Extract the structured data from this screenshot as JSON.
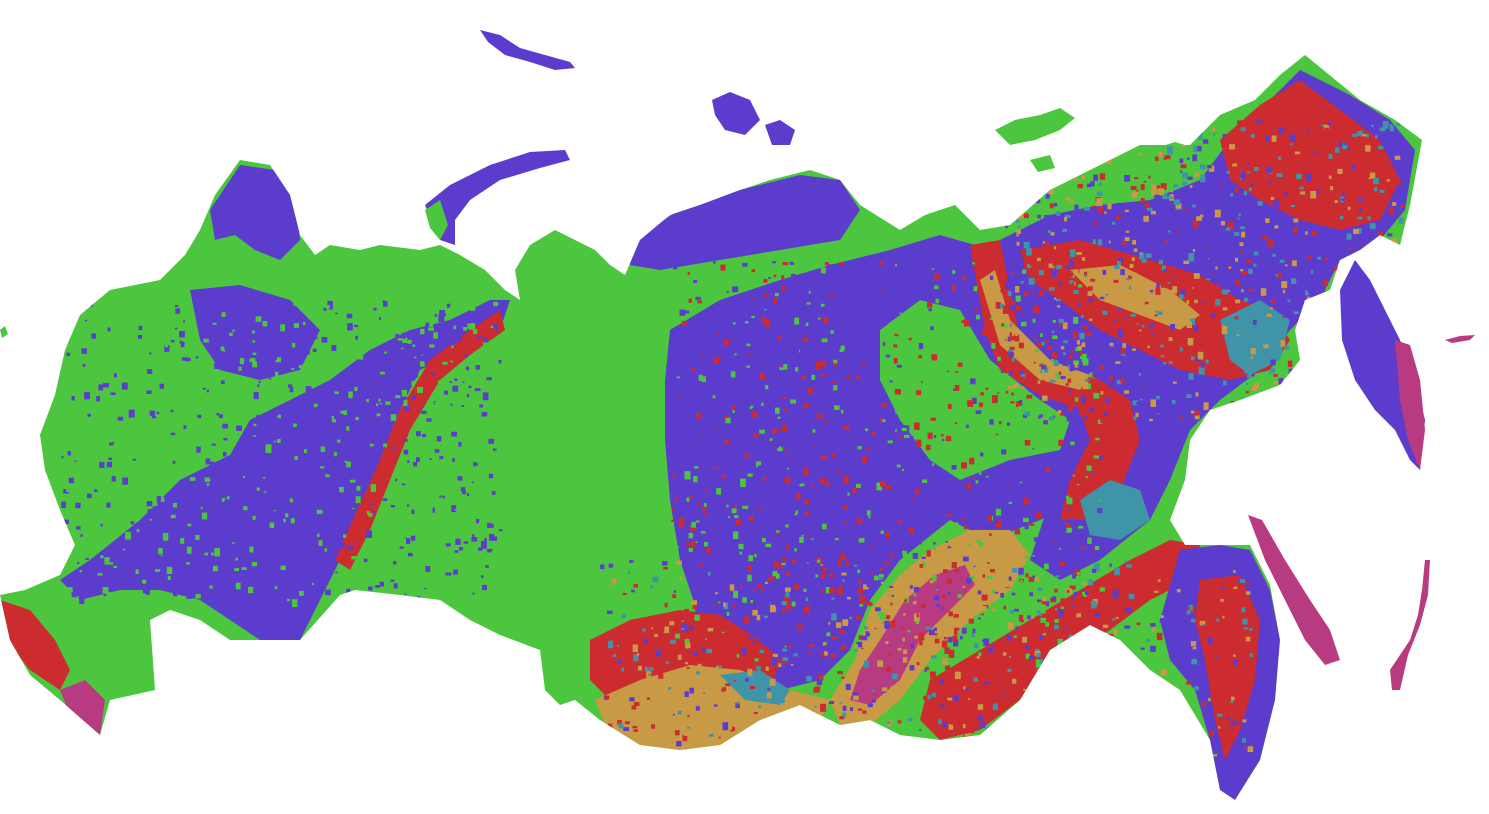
{
  "map": {
    "colors": {
      "background": "#ffffff",
      "green": "#4cc63f",
      "purple": "#5b3ccc",
      "red": "#cc2b2f",
      "gold": "#c99a45",
      "teal": "#3f94a8",
      "magenta": "#b83b82"
    }
  }
}
